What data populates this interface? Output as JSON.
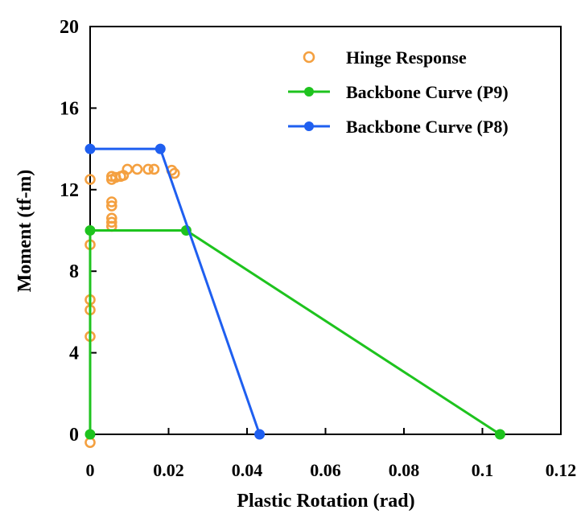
{
  "chart_data": {
    "type": "scatter",
    "title": "",
    "xlabel": "Plastic Rotation (rad)",
    "ylabel": "Moment (tf-m)",
    "xlim": [
      0,
      0.12
    ],
    "ylim": [
      0,
      20
    ],
    "x_ticks": [
      "0",
      "0.02",
      "0.04",
      "0.06",
      "0.08",
      "0.1",
      "0.12"
    ],
    "x_tick_values": [
      0,
      0.02,
      0.04,
      0.06,
      0.08,
      0.1,
      0.12
    ],
    "y_ticks": [
      "0",
      "4",
      "8",
      "12",
      "16",
      "20"
    ],
    "y_tick_values": [
      0,
      4,
      8,
      12,
      16,
      20
    ],
    "grid": false,
    "legend_position": "top-right",
    "series": [
      {
        "name": "Hinge Response",
        "style": "open-circle",
        "color": "#f4a040",
        "points": [
          [
            0.0,
            -0.4
          ],
          [
            0.0,
            4.8
          ],
          [
            0.0,
            6.1
          ],
          [
            0.0,
            6.6
          ],
          [
            0.0,
            9.3
          ],
          [
            0.0,
            12.5
          ],
          [
            0.0055,
            10.2
          ],
          [
            0.0055,
            10.4
          ],
          [
            0.0055,
            10.6
          ],
          [
            0.0055,
            11.2
          ],
          [
            0.0055,
            11.4
          ],
          [
            0.0055,
            12.5
          ],
          [
            0.0055,
            12.65
          ],
          [
            0.0065,
            12.6
          ],
          [
            0.0078,
            12.65
          ],
          [
            0.0085,
            12.7
          ],
          [
            0.0095,
            13.0
          ],
          [
            0.012,
            13.0
          ],
          [
            0.0148,
            13.0
          ],
          [
            0.0163,
            13.0
          ],
          [
            0.0208,
            12.95
          ],
          [
            0.0215,
            12.8
          ]
        ]
      },
      {
        "name": "Backbone Curve (P9)",
        "style": "line-marker",
        "color": "#1ec31e",
        "points": [
          [
            0.0,
            0.0
          ],
          [
            0.0,
            10.0
          ],
          [
            0.0245,
            10.0
          ],
          [
            0.1045,
            0.0
          ]
        ]
      },
      {
        "name": "Backbone Curve (P8)",
        "style": "line-marker",
        "color": "#1f5ff0",
        "points": [
          [
            0.0,
            14.0
          ],
          [
            0.0179,
            14.0
          ],
          [
            0.0432,
            0.0
          ]
        ]
      }
    ]
  }
}
